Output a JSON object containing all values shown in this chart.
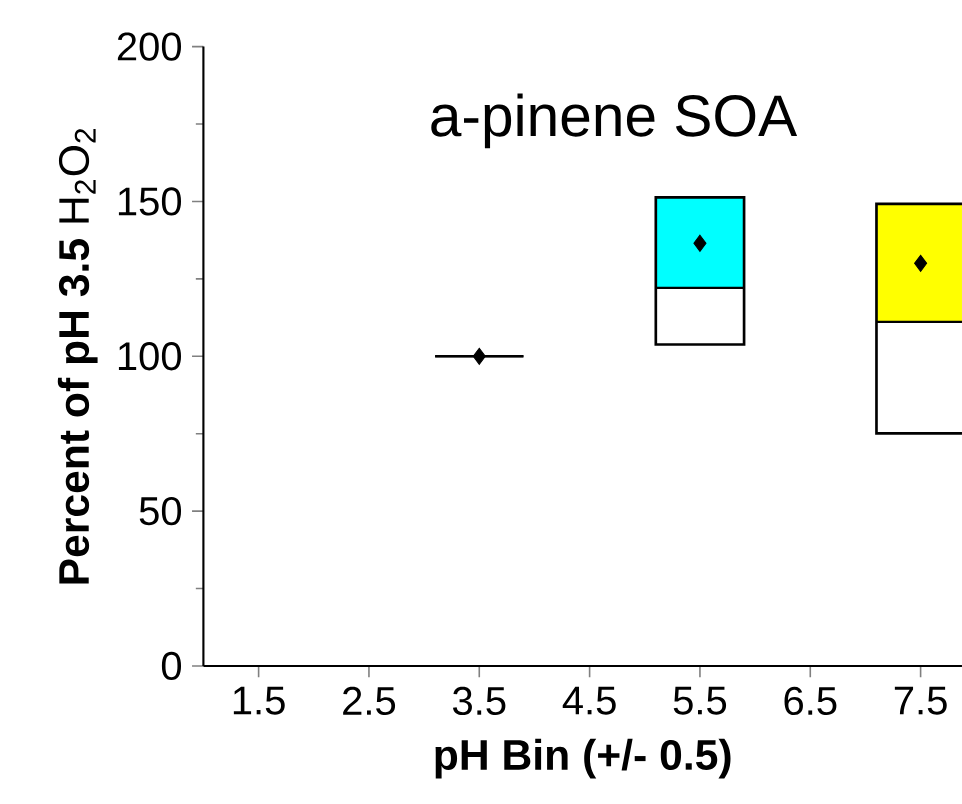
{
  "chart_data": {
    "type": "box",
    "title": "a-pinene SOA",
    "xlabel": "pH Bin (+/- 0.5)",
    "ylabel": "**Percent of pH 3.5** H$_{2}$O$_{2}$",
    "categories": [
      "1.5",
      "2.5",
      "3.5",
      "4.5",
      "5.5",
      "6.5",
      "7.5"
    ],
    "boxes": [
      null,
      null,
      {
        "low": 100,
        "q1": 100,
        "median": 100,
        "q3": 100,
        "high": 100,
        "mean": 100
      },
      null,
      {
        "low": 103.8,
        "q1": 103.8,
        "median": 122.1,
        "q3": 151.3,
        "high": 151.3,
        "mean": 136.5
      },
      null,
      {
        "low": 75.1,
        "q1": 75.1,
        "median": 111.1,
        "q3": 149.2,
        "high": 149.2,
        "mean": 130.0
      }
    ],
    "colors": [
      null,
      null,
      "#000000",
      null,
      "#00ffff",
      null,
      "#ffff00"
    ],
    "marker": "diamond",
    "ylim": [
      0,
      200
    ],
    "yticks": [
      0,
      50,
      100,
      150,
      200
    ]
  }
}
